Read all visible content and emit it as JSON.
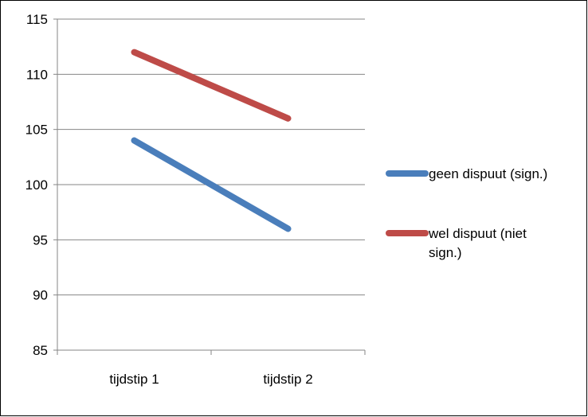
{
  "chart_data": {
    "type": "line",
    "title": "",
    "categories": [
      "tijdstip 1",
      "tijdstip 2"
    ],
    "yticks": [
      "85",
      "90",
      "95",
      "100",
      "105",
      "110",
      "115"
    ],
    "ylim": [
      85,
      115
    ],
    "grid": true,
    "legend_position": "right",
    "series": [
      {
        "name": "geen dispuut (sign.)",
        "values": [
          104,
          96
        ],
        "color": "#4a7ebb"
      },
      {
        "name": "wel dispuut (niet sign.)",
        "values": [
          112,
          106
        ],
        "color": "#be4b48"
      }
    ]
  }
}
